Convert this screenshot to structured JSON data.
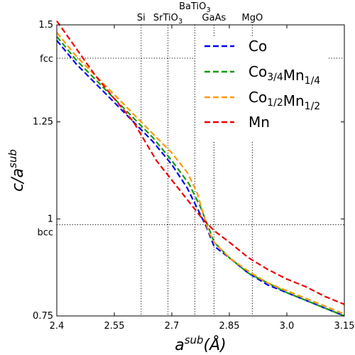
{
  "chart_data": {
    "type": "line",
    "xlim": [
      2.4,
      3.15
    ],
    "ylim": [
      0.75,
      1.5
    ],
    "xlabel": {
      "main": "a",
      "sup": "sub",
      "rest": "(Å)"
    },
    "ylabel": {
      "main": "c/a",
      "sup": "sub"
    },
    "x_ticks": [
      {
        "value": 2.4,
        "label": "2.4"
      },
      {
        "value": 2.55,
        "label": "2.55"
      },
      {
        "value": 2.7,
        "label": "2.7"
      },
      {
        "value": 2.85,
        "label": "2.85"
      },
      {
        "value": 3.0,
        "label": "3.0"
      },
      {
        "value": 3.15,
        "label": "3.15"
      }
    ],
    "y_ticks": [
      {
        "value": 0.75,
        "label": "0.75"
      },
      {
        "value": 1.0,
        "label": "1"
      },
      {
        "value": 1.25,
        "label": "1.25"
      },
      {
        "value": 1.5,
        "label": "1.5"
      }
    ],
    "reference_lines": {
      "horizontal": [
        {
          "value": 1.414,
          "label": "fcc"
        },
        {
          "value": 0.985,
          "label": "bcc"
        }
      ],
      "vertical": [
        {
          "value": 2.62,
          "label": "Si"
        },
        {
          "value": 2.69,
          "label": "SrTiO3"
        },
        {
          "value": 2.76,
          "label": "BaTiO3"
        },
        {
          "value": 2.81,
          "label": "GaAs"
        },
        {
          "value": 2.91,
          "label": "MgO"
        }
      ]
    },
    "legend_position": "top-right",
    "series": [
      {
        "name": "Co",
        "color": "#0000ee",
        "x": [
          2.4,
          2.45,
          2.5,
          2.55,
          2.6,
          2.65,
          2.7,
          2.74,
          2.77,
          2.79,
          2.81,
          2.85,
          2.9,
          2.95,
          3.0,
          3.05,
          3.1,
          3.15
        ],
        "y": [
          1.46,
          1.4,
          1.35,
          1.3,
          1.25,
          1.2,
          1.14,
          1.08,
          1.02,
          0.98,
          0.93,
          0.9,
          0.86,
          0.83,
          0.81,
          0.79,
          0.77,
          0.75
        ]
      },
      {
        "name": "Co3/4Mn1/4",
        "color": "#119911",
        "x": [
          2.4,
          2.45,
          2.5,
          2.55,
          2.6,
          2.65,
          2.7,
          2.745,
          2.775,
          2.795,
          2.81,
          2.85,
          2.9,
          2.95,
          3.0,
          3.05,
          3.1,
          3.15
        ],
        "y": [
          1.47,
          1.41,
          1.36,
          1.31,
          1.26,
          1.21,
          1.15,
          1.09,
          1.03,
          0.98,
          0.94,
          0.9,
          0.86,
          0.835,
          0.81,
          0.79,
          0.77,
          0.75
        ]
      },
      {
        "name": "Co1/2Mn1/2",
        "color": "#ff9900",
        "x": [
          2.4,
          2.45,
          2.5,
          2.55,
          2.6,
          2.65,
          2.7,
          2.74,
          2.765,
          2.78,
          2.795,
          2.81,
          2.85,
          2.9,
          2.95,
          3.0,
          3.05,
          3.1,
          3.15
        ],
        "y": [
          1.48,
          1.42,
          1.37,
          1.32,
          1.27,
          1.22,
          1.17,
          1.12,
          1.07,
          1.02,
          0.97,
          0.94,
          0.9,
          0.865,
          0.835,
          0.815,
          0.795,
          0.775,
          0.755
        ]
      },
      {
        "name": "Mn",
        "color": "#ee0000",
        "x": [
          2.4,
          2.45,
          2.5,
          2.55,
          2.6,
          2.63,
          2.66,
          2.7,
          2.74,
          2.78,
          2.81,
          2.85,
          2.9,
          2.95,
          3.0,
          3.05,
          3.1,
          3.15
        ],
        "y": [
          1.51,
          1.44,
          1.37,
          1.31,
          1.25,
          1.2,
          1.15,
          1.1,
          1.05,
          1.0,
          0.97,
          0.94,
          0.9,
          0.87,
          0.845,
          0.825,
          0.8,
          0.78
        ]
      }
    ]
  }
}
